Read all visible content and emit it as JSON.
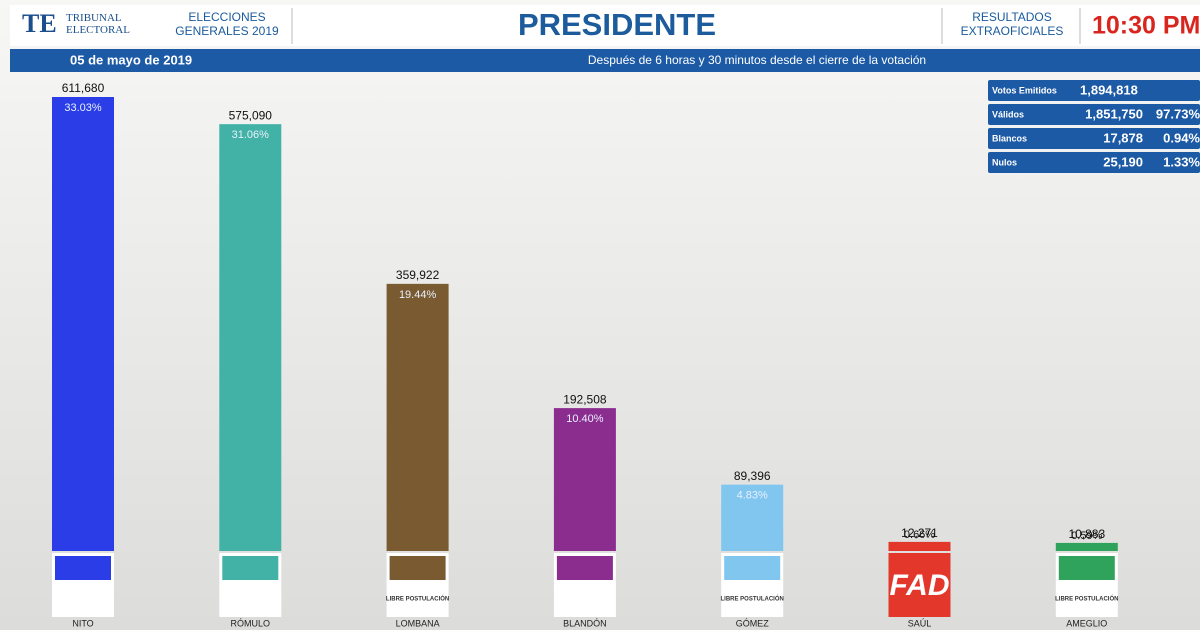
{
  "chart_data": {
    "type": "bar",
    "header": {
      "logo": "TE",
      "logo_name": "TRIBUNAL ELECTORAL",
      "election": "ELECCIONES GENERALES 2019",
      "title": "PRESIDENTE",
      "status": "RESULTADOS EXTRAOFICIALES",
      "time": "10:30 PM"
    },
    "date": "05 de mayo de 2019",
    "subtitle": "Después de 6 horas y 30 minutos desde el cierre de la votación",
    "categories": [
      "NITO",
      "RÓMULO",
      "LOMBANA",
      "BLANDÓN",
      "GÓMEZ",
      "SAÚL",
      "AMEGLIO"
    ],
    "values": [
      611680,
      575090,
      359922,
      192508,
      89396,
      12271,
      10883
    ],
    "value_labels": [
      "611,680",
      "575,090",
      "359,922",
      "192,508",
      "89,396",
      "12,271",
      "10,883"
    ],
    "share_labels": [
      "33.03%",
      "31.06%",
      "19.44%",
      "10.40%",
      "4.83%",
      "0.66%",
      "0.59%"
    ],
    "colors": [
      "#2a3de6",
      "#43b2a6",
      "#7a5a30",
      "#8b2d8f",
      "#80c6ee",
      "#e2372a",
      "#2fa35c"
    ],
    "logo_labels": {
      "2": "LIBRE POSTULACIÓN",
      "4": "LIBRE POSTULACIÓN",
      "5": "FAD",
      "6": "LIBRE POSTULACIÓN"
    },
    "summary": [
      [
        "Votos Emitidos",
        "1,894,818"
      ],
      [
        "Válidos",
        "1,851,750",
        "97.73%"
      ],
      [
        "Blancos",
        "17,878",
        "0.94%"
      ],
      [
        "Nulos",
        "25,190",
        "1.33%"
      ]
    ]
  }
}
